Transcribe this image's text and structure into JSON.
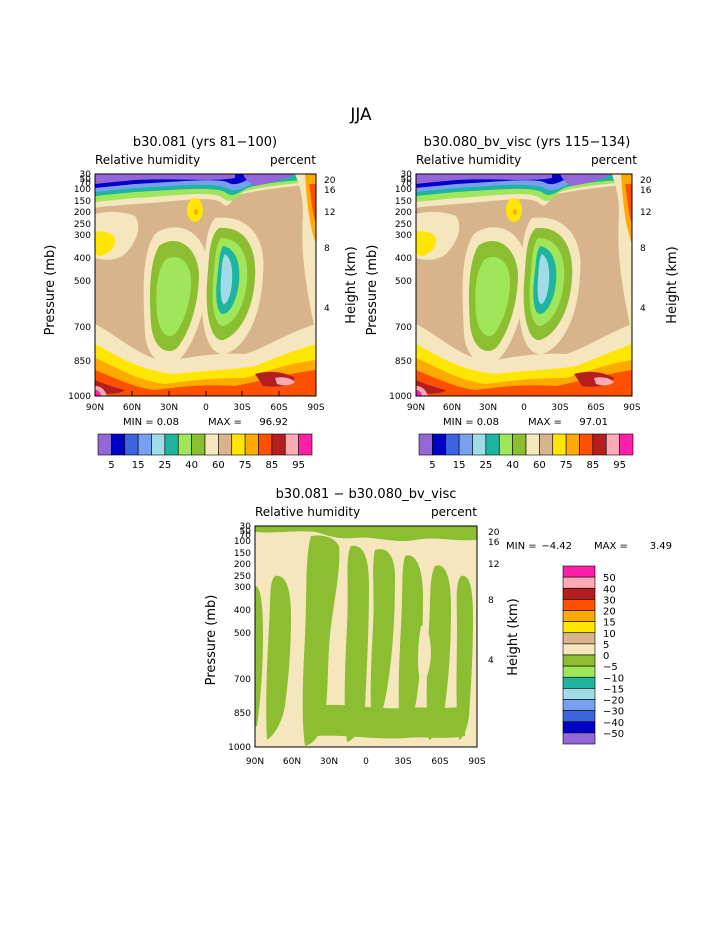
{
  "page_title": "JJA",
  "colors": {
    "fill_levels_scale": [
      "#9466d8",
      "#0000c8",
      "#3c64dc",
      "#78a0f0",
      "#a0dce6",
      "#1eb4a0",
      "#a0e65a",
      "#8cbe32",
      "#f5e6be",
      "#d7b48c",
      "#ffe600",
      "#ffaa00",
      "#ff5000",
      "#b41e1e",
      "#ffaab4",
      "#ff1eaa"
    ],
    "diff_levels_scale": [
      "#ff1eaa",
      "#ffaab4",
      "#b41e1e",
      "#ff5000",
      "#ffaa00",
      "#ffe600",
      "#d7b48c",
      "#f5e6be",
      "#8cbe32",
      "#a0e65a",
      "#1eb4a0",
      "#a0dce6",
      "#78a0f0",
      "#3c64dc",
      "#0000c8",
      "#9466d8"
    ]
  },
  "chart_data": [
    {
      "type": "heatmap",
      "title": "b30.081 (yrs 81−100)",
      "left_label": "Relative humidity",
      "right_label": "percent",
      "xlabel": "",
      "ylabel": "Pressure (mb)",
      "y2label": "Height (km)",
      "x_ticks": [
        "90N",
        "60N",
        "30N",
        "0",
        "30S",
        "60S",
        "90S"
      ],
      "y_ticks": [
        "30",
        "50",
        "70",
        "100",
        "150",
        "200",
        "250",
        "300",
        "400",
        "500",
        "700",
        "850",
        "1000"
      ],
      "y2_ticks": [
        "20",
        "16",
        "12",
        "8",
        "4"
      ],
      "min_label": "MIN =",
      "min_value": "0.08",
      "max_label": "MAX =",
      "max_value": "96.92",
      "colorbar_labels": [
        "5",
        "15",
        "25",
        "40",
        "60",
        "75",
        "85",
        "95"
      ],
      "levels": [
        5,
        10,
        15,
        20,
        25,
        30,
        35,
        40,
        50,
        60,
        70,
        75,
        80,
        85,
        90,
        95
      ]
    },
    {
      "type": "heatmap",
      "title": "b30.080_bv_visc (yrs 115−134)",
      "left_label": "Relative humidity",
      "right_label": "percent",
      "xlabel": "",
      "ylabel": "Pressure (mb)",
      "y2label": "Height (km)",
      "x_ticks": [
        "90N",
        "60N",
        "30N",
        "0",
        "30S",
        "60S",
        "90S"
      ],
      "y_ticks": [
        "30",
        "50",
        "70",
        "100",
        "150",
        "200",
        "250",
        "300",
        "400",
        "500",
        "700",
        "850",
        "1000"
      ],
      "y2_ticks": [
        "20",
        "16",
        "12",
        "8",
        "4"
      ],
      "min_label": "MIN =",
      "min_value": "0.08",
      "max_label": "MAX =",
      "max_value": "97.01",
      "colorbar_labels": [
        "5",
        "15",
        "25",
        "40",
        "60",
        "75",
        "85",
        "95"
      ],
      "levels": [
        5,
        10,
        15,
        20,
        25,
        30,
        35,
        40,
        50,
        60,
        70,
        75,
        80,
        85,
        90,
        95
      ]
    },
    {
      "type": "heatmap",
      "title": "b30.081 − b30.080_bv_visc",
      "left_label": "Relative humidity",
      "right_label": "percent",
      "xlabel": "",
      "ylabel": "Pressure (mb)",
      "y2label": "Height (km)",
      "x_ticks": [
        "90N",
        "60N",
        "30N",
        "0",
        "30S",
        "60S",
        "90S"
      ],
      "y_ticks": [
        "30",
        "50",
        "70",
        "100",
        "150",
        "200",
        "250",
        "300",
        "400",
        "500",
        "700",
        "850",
        "1000"
      ],
      "y2_ticks": [
        "20",
        "16",
        "12",
        "8",
        "4"
      ],
      "min_label": "MIN =",
      "min_value": "−4.42",
      "max_label": "MAX =",
      "max_value": "3.49",
      "colorbar_labels": [
        "50",
        "40",
        "30",
        "20",
        "15",
        "10",
        "5",
        "0",
        "−5",
        "−10",
        "−15",
        "−20",
        "−30",
        "−40",
        "−50"
      ]
    }
  ]
}
